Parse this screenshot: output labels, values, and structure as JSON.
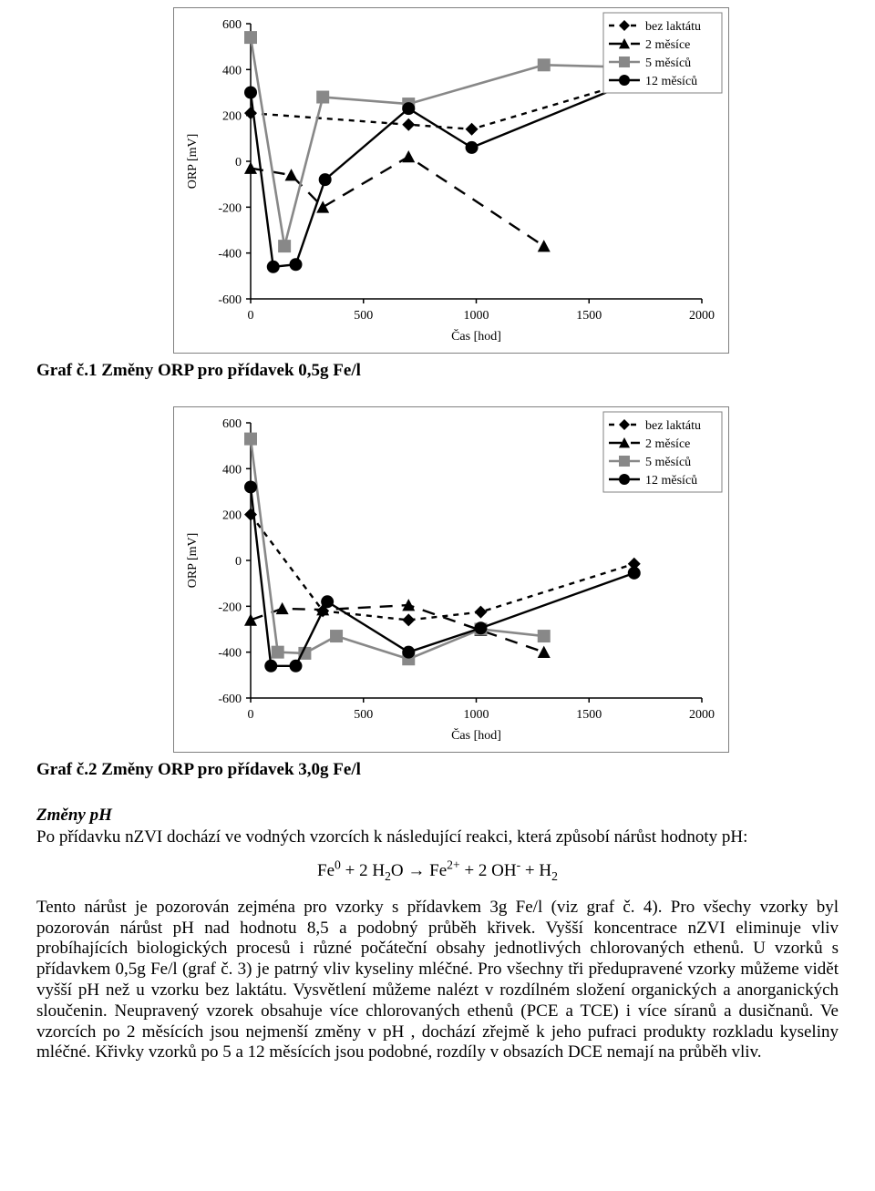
{
  "chart1": {
    "type": "line-scatter",
    "xlabel": "Čas [hod]",
    "ylabel": "ORP [mV]",
    "xlim": [
      0,
      2000
    ],
    "ylim": [
      -600,
      600
    ],
    "xtick_step": 500,
    "ytick_step": 200,
    "xticks": [
      0,
      500,
      1000,
      1500,
      2000
    ],
    "yticks": [
      -600,
      -400,
      -200,
      0,
      200,
      400,
      600
    ],
    "background_color": "#ffffff",
    "plot_border_color": "#808080",
    "legend_border_color": "#808080",
    "axis_fontsize": 14,
    "tick_fontsize": 14,
    "legend_fontsize": 14,
    "legend": [
      "bez laktátu",
      "2 měsíce",
      "5 měsíců",
      "12 měsíců"
    ],
    "series": [
      {
        "name": "bez laktátu",
        "marker": "diamond",
        "line_dash": "6,6",
        "line_width": 2.4,
        "color": "#000000",
        "x": [
          0,
          700,
          980,
          1700
        ],
        "y": [
          210,
          160,
          140,
          350
        ]
      },
      {
        "name": "2 měsíce",
        "marker": "triangle",
        "line_dash": "14,10",
        "line_width": 2.4,
        "color": "#000000",
        "x": [
          0,
          180,
          320,
          700,
          1300
        ],
        "y": [
          -30,
          -60,
          -200,
          20,
          -370
        ]
      },
      {
        "name": "5 měsíců",
        "marker": "square",
        "line_dash": "none",
        "line_width": 2.6,
        "color": "#888888",
        "x": [
          0,
          150,
          320,
          700,
          1300,
          1700
        ],
        "y": [
          540,
          -370,
          280,
          250,
          420,
          410
        ]
      },
      {
        "name": "12 měsíců",
        "marker": "circle",
        "line_dash": "none",
        "line_width": 2.4,
        "color": "#000000",
        "x": [
          0,
          100,
          200,
          330,
          700,
          980,
          1700
        ],
        "y": [
          300,
          -460,
          -450,
          -80,
          230,
          60,
          350
        ]
      }
    ]
  },
  "chart2": {
    "type": "line-scatter",
    "xlabel": "Čas [hod]",
    "ylabel": "ORP [mV]",
    "xlim": [
      0,
      2000
    ],
    "ylim": [
      -600,
      600
    ],
    "xtick_step": 500,
    "ytick_step": 200,
    "xticks": [
      0,
      500,
      1000,
      1500,
      2000
    ],
    "yticks": [
      -600,
      -400,
      -200,
      0,
      200,
      400,
      600
    ],
    "background_color": "#ffffff",
    "plot_border_color": "#808080",
    "legend_border_color": "#808080",
    "axis_fontsize": 14,
    "tick_fontsize": 14,
    "legend_fontsize": 14,
    "legend": [
      "bez laktátu",
      "2 měsíce",
      "5 měsíců",
      "12 měsíců"
    ],
    "series": [
      {
        "name": "bez laktátu",
        "marker": "diamond",
        "line_dash": "6,6",
        "line_width": 2.4,
        "color": "#000000",
        "x": [
          0,
          320,
          700,
          1020,
          1700
        ],
        "y": [
          200,
          -220,
          -260,
          -225,
          -15
        ]
      },
      {
        "name": "2 měsíce",
        "marker": "triangle",
        "line_dash": "14,10",
        "line_width": 2.4,
        "color": "#000000",
        "x": [
          0,
          140,
          320,
          700,
          1020,
          1300
        ],
        "y": [
          -260,
          -210,
          -215,
          -195,
          -305,
          -400
        ]
      },
      {
        "name": "5 měsíců",
        "marker": "square",
        "line_dash": "none",
        "line_width": 2.6,
        "color": "#888888",
        "x": [
          0,
          120,
          240,
          380,
          700,
          1020,
          1300
        ],
        "y": [
          530,
          -400,
          -405,
          -330,
          -430,
          -300,
          -330
        ]
      },
      {
        "name": "12 měsíců",
        "marker": "circle",
        "line_dash": "none",
        "line_width": 2.4,
        "color": "#000000",
        "x": [
          0,
          90,
          200,
          340,
          700,
          1020,
          1700
        ],
        "y": [
          320,
          -460,
          -460,
          -180,
          -400,
          -295,
          -55
        ]
      }
    ]
  },
  "captions": {
    "c1": "Graf č.1  Změny ORP pro přídavek 0,5g Fe/l",
    "c2": "Graf č.2  Změny ORP pro přídavek 3,0g Fe/l"
  },
  "text": {
    "heading": "Změny pH",
    "p1": "Po přídavku nZVI dochází ve vodných vzorcích k následující reakci, která způsobí nárůst hodnoty pH:",
    "p2": "Tento nárůst je pozorován zejména pro vzorky s přídavkem 3g Fe/l (viz graf č. 4). Pro všechy vzorky byl pozorován nárůst pH nad hodnotu 8,5 a podobný průběh křivek. Vyšší koncentrace nZVI eliminuje vliv probíhajících biologických procesů i různé počáteční obsahy jednotlivých chlorovaných ethenů. U vzorků s přídavkem 0,5g Fe/l (graf č. 3) je patrný vliv kyseliny mléčné. Pro všechny tři předupravené vzorky můžeme vidět vyšší pH než u vzorku bez laktátu. Vysvětlení můžeme nalézt v rozdílném složení organických a anorganických sloučenin. Neupravený vzorek obsahuje více chlorovaných ethenů (PCE a TCE) i více síranů a dusičnanů. Ve vzorcích po 2 měsících jsou nejmenší změny v pH , dochází zřejmě k jeho pufraci produkty rozkladu kyseliny mléčné. Křivky vzorků po 5 a 12 měsících jsou podobné, rozdíly v obsazích DCE nemají na průběh vliv."
  },
  "equation": {
    "html": "Fe<sup>0</sup> + 2 H<sub>2</sub>O → Fe<sup>2+</sup> + 2 OH<sup>-</sup> + H<sub>2</sub>"
  }
}
